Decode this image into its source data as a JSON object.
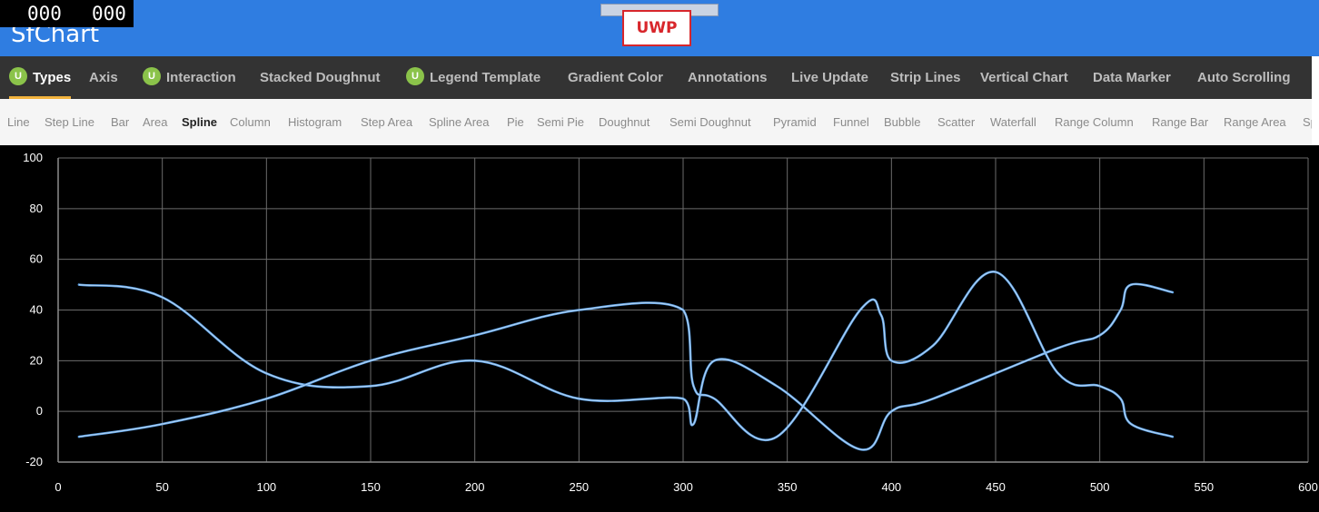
{
  "app": {
    "title": "SfChart",
    "fps_left": "000",
    "fps_right": "000",
    "platform": "UWP"
  },
  "categories": [
    {
      "label": "Types",
      "badge": "U",
      "active": true
    },
    {
      "label": "Axis",
      "badge": "",
      "active": false
    },
    {
      "label": "Interaction",
      "badge": "U",
      "active": false
    },
    {
      "label": "Stacked Doughnut",
      "badge": "",
      "active": false
    },
    {
      "label": "Legend Template",
      "badge": "U",
      "active": false
    },
    {
      "label": "Gradient Color",
      "badge": "",
      "active": false
    },
    {
      "label": "Annotations",
      "badge": "",
      "active": false
    },
    {
      "label": "Live Update",
      "badge": "",
      "active": false
    },
    {
      "label": "Strip Lines",
      "badge": "",
      "active": false
    },
    {
      "label": "Vertical Chart",
      "badge": "",
      "active": false
    },
    {
      "label": "Data Marker",
      "badge": "",
      "active": false
    },
    {
      "label": "Auto Scrolling",
      "badge": "",
      "active": false
    }
  ],
  "chart_types": [
    {
      "label": "Line",
      "active": false
    },
    {
      "label": "Step Line",
      "active": false
    },
    {
      "label": "Bar",
      "active": false
    },
    {
      "label": "Area",
      "active": false
    },
    {
      "label": "Spline",
      "active": true
    },
    {
      "label": "Column",
      "active": false
    },
    {
      "label": "Histogram",
      "active": false
    },
    {
      "label": "Step Area",
      "active": false
    },
    {
      "label": "Spline Area",
      "active": false
    },
    {
      "label": "Pie",
      "active": false
    },
    {
      "label": "Semi Pie",
      "active": false
    },
    {
      "label": "Doughnut",
      "active": false
    },
    {
      "label": "Semi Doughnut",
      "active": false
    },
    {
      "label": "Pyramid",
      "active": false
    },
    {
      "label": "Funnel",
      "active": false
    },
    {
      "label": "Bubble",
      "active": false
    },
    {
      "label": "Scatter",
      "active": false
    },
    {
      "label": "Waterfall",
      "active": false
    },
    {
      "label": "Range Column",
      "active": false
    },
    {
      "label": "Range Bar",
      "active": false
    },
    {
      "label": "Range Area",
      "active": false
    },
    {
      "label": "Sp",
      "active": false
    }
  ],
  "colors": {
    "title_bar": "#2f7de1",
    "accent_underline": "#f2b33d",
    "badge": "#8bc34a",
    "series_color": "#5aa0e6",
    "series_highlight": "#ffffff",
    "chart_background": "#000000"
  },
  "chart_data": {
    "type": "line",
    "title": "",
    "xlabel": "",
    "ylabel": "",
    "xlim": [
      0,
      600
    ],
    "ylim": [
      -20,
      100
    ],
    "x_ticks": [
      "0",
      "50",
      "100",
      "150",
      "200",
      "250",
      "300",
      "350",
      "400",
      "450",
      "500",
      "550",
      "600"
    ],
    "y_ticks": [
      "100",
      "80",
      "60",
      "40",
      "20",
      "0",
      "-20"
    ],
    "grid": true,
    "series": [
      {
        "points": [
          [
            10,
            50
          ],
          [
            50,
            45
          ],
          [
            100,
            15
          ],
          [
            150,
            10
          ],
          [
            200,
            20
          ],
          [
            250,
            5
          ],
          [
            300,
            5
          ],
          [
            305,
            -5
          ],
          [
            315,
            20
          ],
          [
            345,
            10
          ],
          [
            385,
            -15
          ],
          [
            400,
            0
          ],
          [
            420,
            5
          ],
          [
            480,
            25
          ],
          [
            500,
            30
          ],
          [
            510,
            40
          ],
          [
            515,
            50
          ],
          [
            535,
            47
          ]
        ]
      },
      {
        "points": [
          [
            10,
            -10
          ],
          [
            50,
            -5
          ],
          [
            100,
            5
          ],
          [
            150,
            20
          ],
          [
            200,
            30
          ],
          [
            250,
            40
          ],
          [
            300,
            40
          ],
          [
            305,
            10
          ],
          [
            315,
            5
          ],
          [
            345,
            -10
          ],
          [
            385,
            40
          ],
          [
            395,
            38
          ],
          [
            400,
            20
          ],
          [
            420,
            26
          ],
          [
            450,
            55
          ],
          [
            480,
            15
          ],
          [
            500,
            10
          ],
          [
            510,
            5
          ],
          [
            515,
            -5
          ],
          [
            535,
            -10
          ]
        ]
      }
    ]
  }
}
